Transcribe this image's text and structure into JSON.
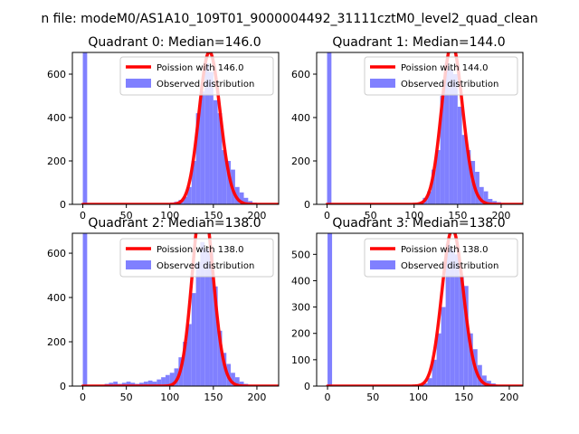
{
  "figure": {
    "suptitle": "n file: modeM0/AS1A10_109T01_9000004492_31111cztM0_level2_quad_clean"
  },
  "colors": {
    "hist": "#8080ff",
    "poisson": "#ff0000",
    "frame": "#000000"
  },
  "chart_data": [
    {
      "type": "bar",
      "title": "Quadrant 0: Median=146.0",
      "median": 146.0,
      "xlim": [
        -12,
        225
      ],
      "ylim": [
        0,
        700
      ],
      "xticks": [
        0,
        50,
        100,
        150,
        200
      ],
      "yticks": [
        0,
        200,
        400,
        600
      ],
      "bin_width": 5,
      "hist": {
        "name": "Observed distribution",
        "bins": [
          0,
          5,
          10,
          15,
          20,
          25,
          30,
          35,
          40,
          45,
          50,
          55,
          60,
          65,
          70,
          75,
          80,
          85,
          90,
          95,
          100,
          105,
          110,
          115,
          120,
          125,
          130,
          135,
          140,
          145,
          150,
          155,
          160,
          165,
          170,
          175,
          180,
          185,
          190,
          195,
          200,
          205,
          210
        ],
        "values": [
          700,
          0,
          0,
          0,
          0,
          0,
          0,
          0,
          0,
          0,
          0,
          0,
          0,
          0,
          0,
          0,
          0,
          0,
          0,
          0,
          8,
          12,
          20,
          35,
          80,
          200,
          420,
          520,
          650,
          610,
          480,
          420,
          250,
          200,
          160,
          80,
          55,
          30,
          15,
          8,
          4,
          2,
          1
        ]
      },
      "poisson": {
        "name": "Poission with 146.0",
        "mean": 146.0
      },
      "legend": [
        "Poission with 146.0",
        "Observed distribution"
      ]
    },
    {
      "type": "bar",
      "title": "Quadrant 1: Median=144.0",
      "median": 144.0,
      "xlim": [
        -12,
        225
      ],
      "ylim": [
        0,
        700
      ],
      "xticks": [
        0,
        50,
        100,
        150,
        200
      ],
      "yticks": [
        0,
        200,
        400,
        600
      ],
      "bin_width": 5,
      "hist": {
        "name": "Observed distribution",
        "bins": [
          0,
          5,
          10,
          15,
          20,
          25,
          30,
          35,
          40,
          45,
          50,
          55,
          60,
          65,
          70,
          75,
          80,
          85,
          90,
          95,
          100,
          105,
          110,
          115,
          120,
          125,
          130,
          135,
          140,
          145,
          150,
          155,
          160,
          165,
          170,
          175,
          180,
          185,
          190,
          195,
          200,
          205,
          210
        ],
        "values": [
          700,
          0,
          0,
          0,
          0,
          0,
          0,
          0,
          0,
          0,
          0,
          0,
          0,
          0,
          0,
          0,
          0,
          0,
          0,
          0,
          5,
          10,
          30,
          60,
          160,
          250,
          500,
          650,
          620,
          600,
          450,
          320,
          250,
          200,
          150,
          80,
          60,
          25,
          15,
          10,
          5,
          2,
          1
        ]
      },
      "poisson": {
        "name": "Poission with 144.0",
        "mean": 144.0
      },
      "legend": [
        "Poission with 144.0",
        "Observed distribution"
      ]
    },
    {
      "type": "bar",
      "title": "Quadrant 2: Median=138.0",
      "median": 138.0,
      "xlim": [
        -12,
        225
      ],
      "ylim": [
        0,
        690
      ],
      "xticks": [
        0,
        50,
        100,
        150,
        200
      ],
      "yticks": [
        0,
        200,
        400,
        600
      ],
      "bin_width": 5,
      "hist": {
        "name": "Observed distribution",
        "bins": [
          0,
          5,
          10,
          15,
          20,
          25,
          30,
          35,
          40,
          45,
          50,
          55,
          60,
          65,
          70,
          75,
          80,
          85,
          90,
          95,
          100,
          105,
          110,
          115,
          120,
          125,
          130,
          135,
          140,
          145,
          150,
          155,
          160,
          165,
          170,
          175,
          180,
          185,
          190,
          195,
          200,
          205,
          210
        ],
        "values": [
          690,
          0,
          0,
          0,
          0,
          10,
          15,
          20,
          10,
          15,
          20,
          15,
          10,
          15,
          20,
          25,
          20,
          30,
          40,
          50,
          60,
          80,
          130,
          200,
          280,
          420,
          560,
          650,
          620,
          600,
          450,
          250,
          150,
          100,
          60,
          40,
          20,
          10,
          5,
          3,
          2,
          1,
          0
        ]
      },
      "poisson": {
        "name": "Poission with 138.0",
        "mean": 138.0
      },
      "legend": [
        "Poission with 138.0",
        "Observed distribution"
      ]
    },
    {
      "type": "bar",
      "title": "Quadrant 3: Median=138.0",
      "median": 138.0,
      "xlim": [
        -12,
        215
      ],
      "ylim": [
        0,
        580
      ],
      "xticks": [
        0,
        50,
        100,
        150,
        200
      ],
      "yticks": [
        0,
        100,
        200,
        300,
        400,
        500
      ],
      "bin_width": 5,
      "hist": {
        "name": "Observed distribution",
        "bins": [
          0,
          5,
          10,
          15,
          20,
          25,
          30,
          35,
          40,
          45,
          50,
          55,
          60,
          65,
          70,
          75,
          80,
          85,
          90,
          95,
          100,
          105,
          110,
          115,
          120,
          125,
          130,
          135,
          140,
          145,
          150,
          155,
          160,
          165,
          170,
          175,
          180,
          185,
          190,
          195,
          200
        ],
        "values": [
          580,
          0,
          0,
          0,
          0,
          0,
          0,
          0,
          0,
          0,
          0,
          0,
          0,
          0,
          0,
          0,
          0,
          0,
          0,
          0,
          5,
          10,
          30,
          100,
          200,
          300,
          540,
          520,
          500,
          420,
          380,
          200,
          140,
          80,
          40,
          20,
          10,
          5,
          3,
          2,
          1
        ]
      },
      "poisson": {
        "name": "Poission with 138.0",
        "mean": 138.0
      },
      "legend": [
        "Poission with 138.0",
        "Observed distribution"
      ]
    }
  ]
}
